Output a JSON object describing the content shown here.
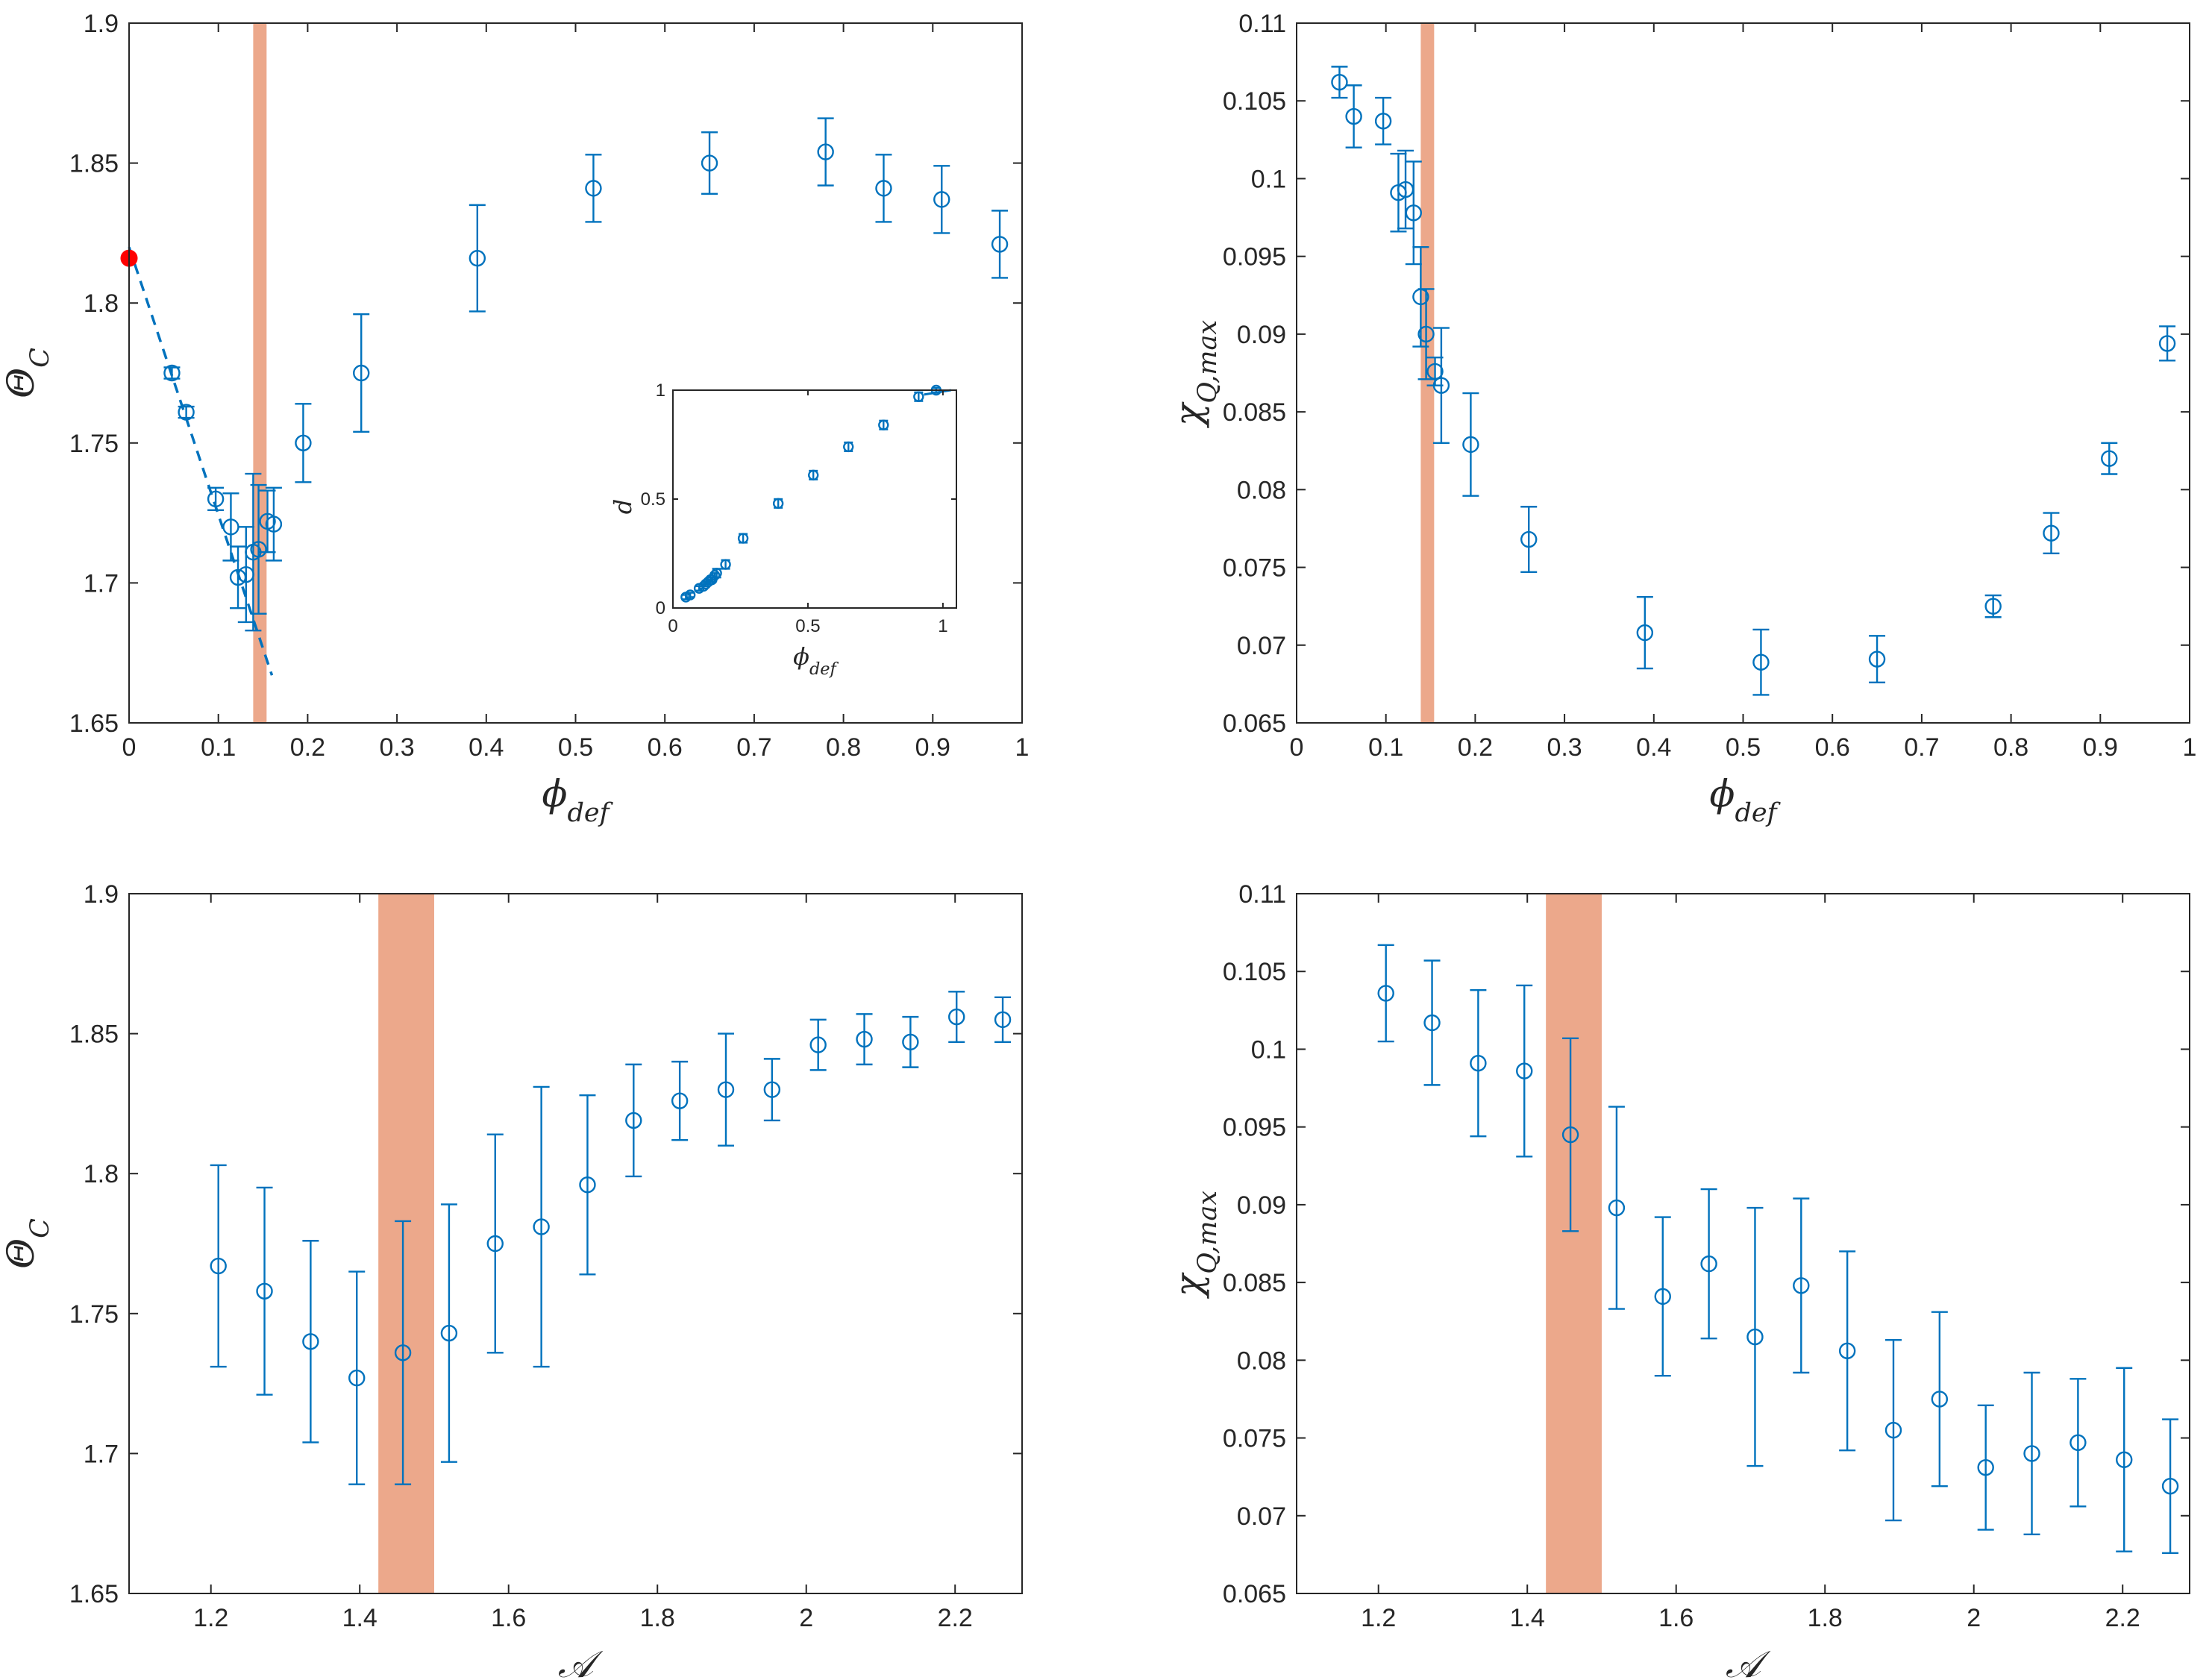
{
  "colors": {
    "series": "#0072bd",
    "band": "#e5865e",
    "highlight": "#ff0000",
    "axis": "#262626"
  },
  "chart_data": [
    {
      "id": "A",
      "type": "scatter",
      "xlabel": "ϕ_def",
      "ylabel": "Θ_C",
      "xlim": [
        0,
        1
      ],
      "ylim": [
        1.65,
        1.9
      ],
      "xticks": [
        0,
        0.1,
        0.2,
        0.3,
        0.4,
        0.5,
        0.6,
        0.7,
        0.8,
        0.9,
        1
      ],
      "xtick_labels": [
        "0",
        "0.1",
        "0.2",
        "0.3",
        "0.4",
        "0.5",
        "0.6",
        "0.7",
        "0.8",
        "0.9",
        "1"
      ],
      "yticks": [
        1.65,
        1.7,
        1.75,
        1.8,
        1.85,
        1.9
      ],
      "ytick_labels": [
        "1.65",
        "1.7",
        "1.75",
        "1.8",
        "1.85",
        "1.9"
      ],
      "band": [
        0.139,
        0.154
      ],
      "x": [
        0.048,
        0.064,
        0.097,
        0.114,
        0.122,
        0.131,
        0.139,
        0.145,
        0.155,
        0.162,
        0.195,
        0.26,
        0.39,
        0.52,
        0.65,
        0.78,
        0.845,
        0.91,
        0.975
      ],
      "y": [
        1.775,
        1.761,
        1.73,
        1.72,
        1.702,
        1.703,
        1.711,
        1.712,
        1.722,
        1.721,
        1.75,
        1.775,
        1.816,
        1.841,
        1.85,
        1.854,
        1.841,
        1.837,
        1.821
      ],
      "err": [
        0.002,
        0.002,
        0.004,
        0.012,
        0.011,
        0.017,
        0.028,
        0.023,
        0.011,
        0.013,
        0.014,
        0.021,
        0.019,
        0.012,
        0.011,
        0.012,
        0.012,
        0.012,
        0.012
      ],
      "fit_line": {
        "x": [
          0,
          0.16
        ],
        "y": [
          1.82,
          1.667
        ]
      },
      "special_point": {
        "x": 0,
        "y": 1.816
      },
      "inset": {
        "xlabel": "ϕ_def",
        "ylabel": "d",
        "xlim": [
          0,
          1.05
        ],
        "ylim": [
          0,
          1
        ],
        "xticks": [
          0,
          0.5,
          1
        ],
        "xtick_labels": [
          "0",
          "0.5",
          "1"
        ],
        "yticks": [
          0,
          0.5,
          1
        ],
        "ytick_labels": [
          "0",
          "0.5",
          "1"
        ],
        "x": [
          0.048,
          0.064,
          0.097,
          0.114,
          0.122,
          0.131,
          0.139,
          0.145,
          0.155,
          0.162,
          0.195,
          0.26,
          0.39,
          0.52,
          0.65,
          0.78,
          0.91,
          0.975
        ],
        "y": [
          0.05,
          0.06,
          0.09,
          0.1,
          0.11,
          0.12,
          0.13,
          0.13,
          0.15,
          0.16,
          0.2,
          0.32,
          0.48,
          0.61,
          0.74,
          0.84,
          0.97,
          1.0
        ],
        "err": [
          0.01,
          0.01,
          0.01,
          0.01,
          0.01,
          0.01,
          0.01,
          0.01,
          0.01,
          0.02,
          0.02,
          0.02,
          0.02,
          0.02,
          0.02,
          0.02,
          0.02,
          0.01
        ],
        "fit_line": {
          "x": [
            0.93,
            1.03
          ],
          "y": [
            0.98,
            1.0
          ]
        }
      }
    },
    {
      "id": "B",
      "type": "scatter",
      "xlabel": "ϕ_def",
      "ylabel": "χ_Q,max",
      "xlim": [
        0,
        1
      ],
      "ylim": [
        0.065,
        0.11
      ],
      "xticks": [
        0,
        0.1,
        0.2,
        0.3,
        0.4,
        0.5,
        0.6,
        0.7,
        0.8,
        0.9,
        1
      ],
      "xtick_labels": [
        "0",
        "0.1",
        "0.2",
        "0.3",
        "0.4",
        "0.5",
        "0.6",
        "0.7",
        "0.8",
        "0.9",
        "1"
      ],
      "yticks": [
        0.065,
        0.07,
        0.075,
        0.08,
        0.085,
        0.09,
        0.095,
        0.1,
        0.105,
        0.11
      ],
      "ytick_labels": [
        "0.065",
        "0.07",
        "0.075",
        "0.08",
        "0.085",
        "0.09",
        "0.095",
        "0.1",
        "0.105",
        "0.11"
      ],
      "band": [
        0.139,
        0.154
      ],
      "x": [
        0.048,
        0.064,
        0.097,
        0.114,
        0.122,
        0.131,
        0.139,
        0.145,
        0.155,
        0.162,
        0.195,
        0.26,
        0.39,
        0.52,
        0.65,
        0.78,
        0.845,
        0.91,
        0.975
      ],
      "y": [
        0.1062,
        0.104,
        0.1037,
        0.0991,
        0.0993,
        0.0978,
        0.0924,
        0.09,
        0.0876,
        0.0867,
        0.0829,
        0.0768,
        0.0708,
        0.0689,
        0.0691,
        0.0725,
        0.0772,
        0.082,
        0.0894
      ],
      "err": [
        0.001,
        0.002,
        0.0015,
        0.0025,
        0.0025,
        0.0033,
        0.0032,
        0.0029,
        0.0009,
        0.0037,
        0.0033,
        0.0021,
        0.0023,
        0.0021,
        0.0015,
        0.0007,
        0.0013,
        0.001,
        0.0011
      ]
    },
    {
      "id": "C",
      "type": "scatter",
      "xlabel": "𝒜",
      "ylabel": "Θ_C",
      "xlim": [
        1.09,
        2.29
      ],
      "ylim": [
        1.65,
        1.9
      ],
      "xticks": [
        1.2,
        1.4,
        1.6,
        1.8,
        2,
        2.2
      ],
      "xtick_labels": [
        "1.2",
        "1.4",
        "1.6",
        "1.8",
        "2",
        "2.2"
      ],
      "yticks": [
        1.65,
        1.7,
        1.75,
        1.8,
        1.85,
        1.9
      ],
      "ytick_labels": [
        "1.65",
        "1.7",
        "1.75",
        "1.8",
        "1.85",
        "1.9"
      ],
      "band": [
        1.425,
        1.5
      ],
      "x": [
        1.21,
        1.272,
        1.334,
        1.396,
        1.458,
        1.52,
        1.582,
        1.644,
        1.706,
        1.768,
        1.83,
        1.892,
        1.954,
        2.016,
        2.078,
        2.14,
        2.202,
        2.264
      ],
      "y": [
        1.767,
        1.758,
        1.74,
        1.727,
        1.736,
        1.743,
        1.775,
        1.781,
        1.796,
        1.819,
        1.826,
        1.83,
        1.83,
        1.846,
        1.848,
        1.847,
        1.856,
        1.855
      ],
      "err": [
        0.036,
        0.037,
        0.036,
        0.038,
        0.047,
        0.046,
        0.039,
        0.05,
        0.032,
        0.02,
        0.014,
        0.02,
        0.011,
        0.009,
        0.009,
        0.009,
        0.009,
        0.008
      ]
    },
    {
      "id": "D",
      "type": "scatter",
      "xlabel": "𝒜",
      "ylabel": "χ_Q,max",
      "xlim": [
        1.09,
        2.29
      ],
      "ylim": [
        0.065,
        0.11
      ],
      "xticks": [
        1.2,
        1.4,
        1.6,
        1.8,
        2,
        2.2
      ],
      "xtick_labels": [
        "1.2",
        "1.4",
        "1.6",
        "1.8",
        "2",
        "2.2"
      ],
      "yticks": [
        0.065,
        0.07,
        0.075,
        0.08,
        0.085,
        0.09,
        0.095,
        0.1,
        0.105,
        0.11
      ],
      "ytick_labels": [
        "0.065",
        "0.07",
        "0.075",
        "0.08",
        "0.085",
        "0.09",
        "0.095",
        "0.1",
        "0.105",
        "0.11"
      ],
      "band": [
        1.425,
        1.5
      ],
      "x": [
        1.21,
        1.272,
        1.334,
        1.396,
        1.458,
        1.52,
        1.582,
        1.644,
        1.706,
        1.768,
        1.83,
        1.892,
        1.954,
        2.016,
        2.078,
        2.14,
        2.202,
        2.264
      ],
      "y": [
        0.1036,
        0.1017,
        0.0991,
        0.0986,
        0.0945,
        0.0898,
        0.0841,
        0.0862,
        0.0815,
        0.0848,
        0.0806,
        0.0755,
        0.0775,
        0.0731,
        0.074,
        0.0747,
        0.0736,
        0.0719
      ],
      "err": [
        0.0031,
        0.004,
        0.0047,
        0.0055,
        0.0062,
        0.0065,
        0.0051,
        0.0048,
        0.0083,
        0.0056,
        0.0064,
        0.0058,
        0.0056,
        0.004,
        0.0052,
        0.0041,
        0.0059,
        0.0043
      ]
    }
  ]
}
